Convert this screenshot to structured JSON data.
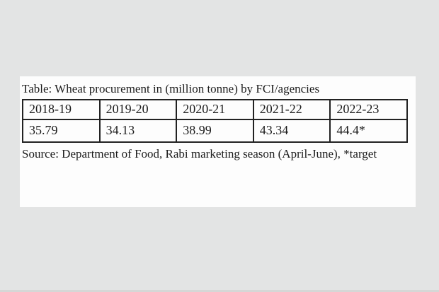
{
  "colors": {
    "page_background": "#e3e4e4",
    "panel_background": "#fdfdfd",
    "text": "#1c1c1c",
    "table_border": "#222222"
  },
  "panel": {
    "title": "Table: Wheat procurement in (million tonne) by FCI/agencies",
    "source_note": "Source: Department of Food, Rabi marketing season (April-June), *target"
  },
  "chart_data": {
    "type": "table",
    "title": "Table: Wheat procurement in (million tonne) by FCI/agencies",
    "unit": "million tonne",
    "categories": [
      "2018-19",
      "2019-20",
      "2020-21",
      "2021-22",
      "2022-23"
    ],
    "values": [
      35.79,
      34.13,
      38.99,
      43.34,
      44.4
    ],
    "value_labels": [
      "35.79",
      "34.13",
      "38.99",
      "43.34",
      "44.4*"
    ],
    "footnote": "*target (44.4 for 2022-23 is a target, not actual)",
    "source": "Source: Department of Food, Rabi marketing season (April-June), *target"
  }
}
